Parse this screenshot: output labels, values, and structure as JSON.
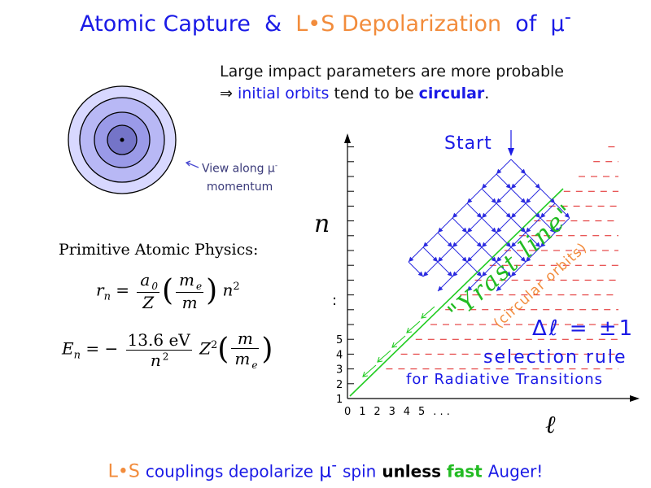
{
  "title": {
    "part1": "Atomic Capture",
    "amp": "&",
    "ls": "L•S",
    "depol": "Depolarization",
    "of": "of",
    "mu": "μ",
    "minus": "-"
  },
  "intro": {
    "line1": "Large impact parameters are more probable",
    "arrow": "⇒",
    "initial_orbits": "initial orbits",
    "tend": "tend to be",
    "circular": "circular",
    "period": "."
  },
  "orbit_caption": {
    "line1": "View along μ",
    "sup": "-",
    "line2": "momentum"
  },
  "physics": {
    "heading": "Primitive Atomic Physics:",
    "rn_lhs": "r",
    "rn_sub": "n",
    "a0": "a",
    "a0_sub": "0",
    "Z": "Z",
    "me": "m",
    "me_sub": "e",
    "m": "m",
    "n2": "n",
    "pow2": "2",
    "En_lhs": "E",
    "En_sub": "n",
    "eq_minus": "= −",
    "energy": "13.6 eV",
    "Z2": "Z",
    "n2_den": "n"
  },
  "graph": {
    "start": "Start",
    "n_axis": "n",
    "l_axis": "ℓ",
    "y_ticks": [
      "1",
      "2",
      "3",
      "4",
      "5"
    ],
    "y_dots": ":",
    "x_ticks": [
      "0",
      "1",
      "2",
      "3",
      "4",
      "5",
      ". . ."
    ],
    "yrast": "\"Yrast line\"",
    "yrast_sub": "(circular orbits)",
    "delta_l": "Δℓ = ±1",
    "selection_rule": "selection rule",
    "radiative": "for Radiative Transitions"
  },
  "footer": {
    "ls": "L•S",
    "couplings": "couplings depolarize",
    "mu": "μ",
    "minus": "-",
    "spin": "spin",
    "unless": "unless",
    "fast": "fast",
    "auger": "Auger!"
  },
  "colors": {
    "blue": "#1a1ae6",
    "orange": "#f28c3c",
    "red_dash": "#e02020",
    "green": "#22cc22",
    "ring1": "#d8d8ff",
    "ring2": "#b8b8f5",
    "ring3": "#9a9ae8",
    "ring4": "#7474c8"
  }
}
